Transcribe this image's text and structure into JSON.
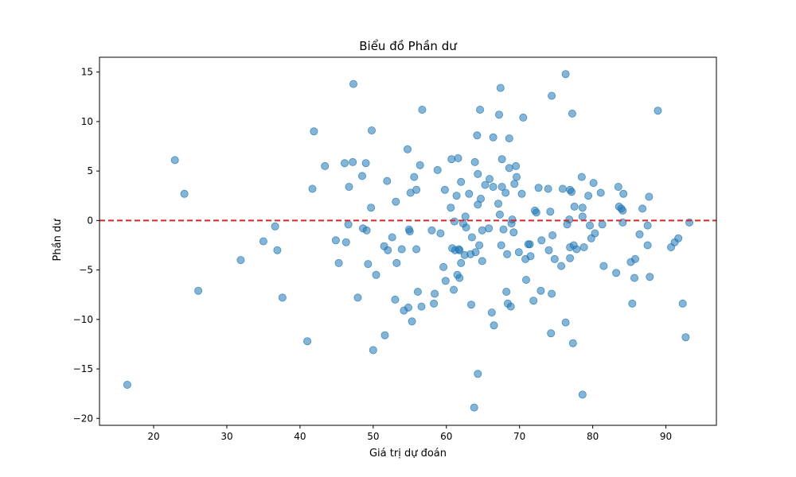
{
  "chart_data": {
    "type": "scatter",
    "title": "Biểu đồ Phần dư",
    "xlabel": "Giá trị dự đoán",
    "ylabel": "Phần dư",
    "xlim": [
      12.6,
      96.9
    ],
    "ylim": [
      -20.7,
      16.5
    ],
    "xticks": [
      20,
      30,
      40,
      50,
      60,
      70,
      80,
      90
    ],
    "yticks": [
      -20,
      -15,
      -10,
      -5,
      0,
      5,
      10,
      15
    ],
    "xtick_labels": [
      "20",
      "30",
      "40",
      "50",
      "60",
      "70",
      "80",
      "90"
    ],
    "ytick_labels": [
      "−20",
      "−15",
      "−10",
      "−5",
      "0",
      "5",
      "10",
      "15"
    ],
    "reference_line": {
      "y": 0,
      "style": "dashed",
      "color": "#d62728"
    },
    "point_color": "#1f77b4",
    "grid": false,
    "points": [
      [
        16.4,
        -16.6
      ],
      [
        22.9,
        6.1
      ],
      [
        24.2,
        2.7
      ],
      [
        26.1,
        -7.1
      ],
      [
        31.9,
        -4.0
      ],
      [
        35.0,
        -2.1
      ],
      [
        36.6,
        -0.6
      ],
      [
        36.9,
        -3.0
      ],
      [
        37.6,
        -7.8
      ],
      [
        41.0,
        -12.2
      ],
      [
        41.7,
        3.2
      ],
      [
        41.9,
        9.0
      ],
      [
        43.4,
        5.5
      ],
      [
        44.9,
        -2.0
      ],
      [
        45.3,
        -4.3
      ],
      [
        46.1,
        5.8
      ],
      [
        46.3,
        -2.2
      ],
      [
        46.6,
        -0.4
      ],
      [
        46.7,
        3.4
      ],
      [
        47.2,
        5.9
      ],
      [
        47.3,
        13.8
      ],
      [
        47.9,
        -7.8
      ],
      [
        48.5,
        4.5
      ],
      [
        48.6,
        -0.8
      ],
      [
        49.0,
        5.8
      ],
      [
        49.1,
        -1.0
      ],
      [
        49.3,
        -4.4
      ],
      [
        49.7,
        1.3
      ],
      [
        49.8,
        9.1
      ],
      [
        50.0,
        -13.1
      ],
      [
        50.4,
        -5.5
      ],
      [
        51.5,
        -2.6
      ],
      [
        51.6,
        -11.6
      ],
      [
        51.9,
        4.0
      ],
      [
        52.0,
        -3.0
      ],
      [
        52.6,
        -1.7
      ],
      [
        53.0,
        -8.0
      ],
      [
        53.1,
        1.9
      ],
      [
        53.2,
        -4.3
      ],
      [
        53.9,
        -2.9
      ],
      [
        54.2,
        -9.1
      ],
      [
        54.7,
        7.2
      ],
      [
        54.8,
        -8.8
      ],
      [
        54.9,
        -0.9
      ],
      [
        55.1,
        2.8
      ],
      [
        55.0,
        -1.1
      ],
      [
        55.3,
        -10.2
      ],
      [
        55.6,
        4.4
      ],
      [
        55.9,
        3.1
      ],
      [
        55.9,
        -2.9
      ],
      [
        56.1,
        -7.2
      ],
      [
        56.4,
        5.6
      ],
      [
        56.6,
        -8.7
      ],
      [
        56.7,
        11.2
      ],
      [
        58.0,
        -1.0
      ],
      [
        58.3,
        -8.4
      ],
      [
        58.4,
        -7.4
      ],
      [
        58.8,
        5.1
      ],
      [
        59.2,
        -1.3
      ],
      [
        59.6,
        -4.7
      ],
      [
        59.8,
        3.1
      ],
      [
        59.9,
        -6.1
      ],
      [
        60.6,
        1.3
      ],
      [
        60.7,
        6.2
      ],
      [
        60.8,
        -2.8
      ],
      [
        61.0,
        -7.0
      ],
      [
        61.1,
        -0.1
      ],
      [
        61.2,
        -3.0
      ],
      [
        61.4,
        2.5
      ],
      [
        61.5,
        -5.5
      ],
      [
        61.6,
        6.3
      ],
      [
        61.7,
        -2.9
      ],
      [
        61.8,
        -5.8
      ],
      [
        61.8,
        -3.0
      ],
      [
        62.0,
        3.9
      ],
      [
        62.0,
        -4.3
      ],
      [
        62.3,
        -0.3
      ],
      [
        62.5,
        -3.5
      ],
      [
        62.6,
        0.4
      ],
      [
        62.7,
        -0.7
      ],
      [
        63.1,
        2.7
      ],
      [
        63.3,
        -3.4
      ],
      [
        63.4,
        -8.5
      ],
      [
        63.5,
        -1.7
      ],
      [
        63.8,
        -18.9
      ],
      [
        63.9,
        5.9
      ],
      [
        64.0,
        -3.2
      ],
      [
        64.2,
        8.6
      ],
      [
        64.3,
        4.7
      ],
      [
        64.3,
        1.6
      ],
      [
        64.3,
        -15.5
      ],
      [
        64.5,
        -2.5
      ],
      [
        64.6,
        11.2
      ],
      [
        64.7,
        2.2
      ],
      [
        64.9,
        -4.1
      ],
      [
        64.9,
        -1.0
      ],
      [
        65.3,
        3.6
      ],
      [
        65.9,
        4.2
      ],
      [
        65.8,
        -0.8
      ],
      [
        66.2,
        -9.3
      ],
      [
        66.4,
        3.4
      ],
      [
        66.4,
        8.4
      ],
      [
        66.5,
        -10.6
      ],
      [
        67.1,
        1.7
      ],
      [
        67.2,
        10.7
      ],
      [
        67.3,
        0.6
      ],
      [
        67.4,
        13.4
      ],
      [
        67.5,
        -2.5
      ],
      [
        67.6,
        6.2
      ],
      [
        67.6,
        3.4
      ],
      [
        67.8,
        -0.9
      ],
      [
        68.1,
        2.8
      ],
      [
        68.2,
        -7.2
      ],
      [
        68.3,
        -3.4
      ],
      [
        68.4,
        -8.4
      ],
      [
        68.6,
        5.3
      ],
      [
        68.6,
        8.3
      ],
      [
        68.8,
        -8.7
      ],
      [
        68.9,
        -0.3
      ],
      [
        69.0,
        0.1
      ],
      [
        69.2,
        -1.2
      ],
      [
        69.3,
        3.7
      ],
      [
        69.5,
        5.5
      ],
      [
        69.6,
        4.4
      ],
      [
        69.9,
        -3.2
      ],
      [
        70.3,
        2.7
      ],
      [
        70.5,
        10.4
      ],
      [
        70.8,
        -3.9
      ],
      [
        70.9,
        -6.0
      ],
      [
        71.2,
        -2.4
      ],
      [
        71.4,
        -2.4
      ],
      [
        71.5,
        -3.6
      ],
      [
        71.9,
        -8.1
      ],
      [
        72.1,
        1.0
      ],
      [
        72.3,
        0.8
      ],
      [
        72.6,
        3.3
      ],
      [
        72.9,
        -7.1
      ],
      [
        73.0,
        -2.0
      ],
      [
        73.9,
        3.2
      ],
      [
        74.0,
        -3.0
      ],
      [
        74.2,
        0.9
      ],
      [
        74.3,
        -11.4
      ],
      [
        74.4,
        12.6
      ],
      [
        74.4,
        -7.4
      ],
      [
        74.5,
        -1.5
      ],
      [
        74.8,
        -3.9
      ],
      [
        75.7,
        -4.6
      ],
      [
        75.9,
        3.2
      ],
      [
        76.3,
        14.8
      ],
      [
        76.3,
        -10.3
      ],
      [
        76.5,
        -0.4
      ],
      [
        76.8,
        0.1
      ],
      [
        76.9,
        -3.8
      ],
      [
        76.9,
        -2.7
      ],
      [
        76.9,
        3.1
      ],
      [
        77.1,
        2.9
      ],
      [
        77.2,
        10.8
      ],
      [
        77.3,
        -12.4
      ],
      [
        77.4,
        -2.5
      ],
      [
        77.5,
        1.4
      ],
      [
        77.8,
        -2.9
      ],
      [
        78.5,
        4.4
      ],
      [
        78.6,
        -17.6
      ],
      [
        78.6,
        0.4
      ],
      [
        78.6,
        1.3
      ],
      [
        78.8,
        -2.7
      ],
      [
        79.4,
        2.5
      ],
      [
        79.6,
        -0.5
      ],
      [
        79.8,
        -1.8
      ],
      [
        80.1,
        3.8
      ],
      [
        80.3,
        -1.3
      ],
      [
        81.1,
        2.8
      ],
      [
        81.3,
        -0.4
      ],
      [
        81.5,
        -4.6
      ],
      [
        83.2,
        -5.3
      ],
      [
        83.5,
        3.4
      ],
      [
        83.6,
        1.4
      ],
      [
        83.9,
        1.2
      ],
      [
        84.1,
        1.0
      ],
      [
        84.1,
        -0.2
      ],
      [
        84.2,
        2.7
      ],
      [
        85.2,
        -4.2
      ],
      [
        85.4,
        -8.4
      ],
      [
        85.7,
        -5.8
      ],
      [
        85.8,
        -3.9
      ],
      [
        86.4,
        -1.4
      ],
      [
        86.8,
        1.2
      ],
      [
        87.5,
        -2.5
      ],
      [
        87.5,
        -0.5
      ],
      [
        87.7,
        2.4
      ],
      [
        87.8,
        -5.7
      ],
      [
        88.9,
        11.1
      ],
      [
        90.7,
        -2.7
      ],
      [
        91.2,
        -2.2
      ],
      [
        91.7,
        -1.8
      ],
      [
        92.3,
        -8.4
      ],
      [
        92.7,
        -11.8
      ],
      [
        93.2,
        -0.2
      ]
    ]
  }
}
